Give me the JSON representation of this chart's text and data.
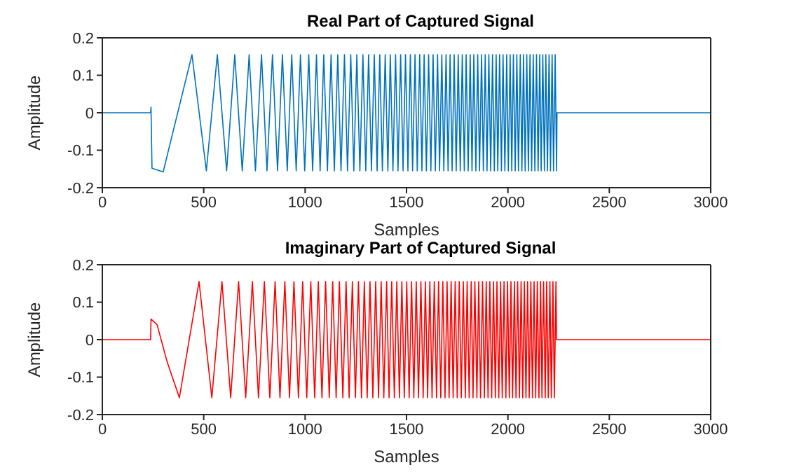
{
  "chart_data": [
    {
      "type": "line",
      "title": "Real Part of Captured Signal",
      "xlabel": "Samples",
      "ylabel": "Amplitude",
      "xlim": [
        0,
        3000
      ],
      "xticks": [
        0,
        500,
        1000,
        1500,
        2000,
        2500,
        3000
      ],
      "ylim": [
        -0.2,
        0.2
      ],
      "yticks": [
        -0.2,
        -0.1,
        0,
        0.1,
        0.2
      ],
      "grid": false,
      "x": [
        0,
        238,
        240,
        245,
        300,
        442,
        513,
        567,
        613,
        653,
        690,
        724,
        755,
        785,
        812,
        839,
        864,
        888,
        912,
        934,
        956,
        977,
        998,
        1018,
        1037,
        1056,
        1074,
        1092,
        1110,
        1128,
        1144,
        1161,
        1177,
        1194,
        1209,
        1225,
        1240,
        1255,
        1270,
        1285,
        1299,
        1313,
        1327,
        1341,
        1355,
        1368,
        1381,
        1395,
        1408,
        1420,
        1433,
        1446,
        1458,
        1471,
        1483,
        1495,
        1507,
        1519,
        1530,
        1542,
        1553,
        1565,
        1576,
        1587,
        1598,
        1609,
        1620,
        1631,
        1642,
        1653,
        1663,
        1674,
        1684,
        1695,
        1705,
        1715,
        1725,
        1735,
        1745,
        1755,
        1765,
        1775,
        1785,
        1794,
        1804,
        1814,
        1823,
        1832,
        1842,
        1851,
        1860,
        1870,
        1879,
        1888,
        1897,
        1906,
        1915,
        1924,
        1933,
        1942,
        1950,
        1959,
        1968,
        1976,
        1985,
        1994,
        2002,
        2011,
        2019,
        2027,
        2036,
        2044,
        2052,
        2061,
        2069,
        2077,
        2085,
        2093,
        2101,
        2109,
        2117,
        2125,
        2133,
        2141,
        2149,
        2157,
        2164,
        2172,
        2180,
        2187,
        2195,
        2203,
        2210,
        2218,
        2225,
        2233,
        2240,
        2242,
        3000
      ],
      "series": [
        {
          "color": "#0072bd",
          "values": [
            0,
            0,
            0.015,
            -0.148,
            -0.158,
            0.155,
            -0.155,
            0.155,
            -0.155,
            0.155,
            -0.155,
            0.155,
            -0.155,
            0.155,
            -0.155,
            0.155,
            -0.155,
            0.155,
            -0.155,
            0.155,
            -0.155,
            0.155,
            -0.155,
            0.155,
            -0.155,
            0.155,
            -0.155,
            0.155,
            -0.155,
            0.155,
            -0.155,
            0.155,
            -0.155,
            0.155,
            -0.155,
            0.155,
            -0.155,
            0.155,
            -0.155,
            0.155,
            -0.155,
            0.155,
            -0.155,
            0.155,
            -0.155,
            0.155,
            -0.155,
            0.155,
            -0.155,
            0.155,
            -0.155,
            0.155,
            -0.155,
            0.155,
            -0.155,
            0.155,
            -0.155,
            0.155,
            -0.155,
            0.155,
            -0.155,
            0.155,
            -0.155,
            0.155,
            -0.155,
            0.155,
            -0.155,
            0.155,
            -0.155,
            0.155,
            -0.155,
            0.155,
            -0.155,
            0.155,
            -0.155,
            0.155,
            -0.155,
            0.155,
            -0.155,
            0.155,
            -0.155,
            0.155,
            -0.155,
            0.155,
            -0.155,
            0.155,
            -0.155,
            0.155,
            -0.155,
            0.155,
            -0.155,
            0.155,
            -0.155,
            0.155,
            -0.155,
            0.155,
            -0.155,
            0.155,
            -0.155,
            0.155,
            -0.155,
            0.155,
            -0.155,
            0.155,
            -0.155,
            0.155,
            -0.155,
            0.155,
            -0.155,
            0.155,
            -0.155,
            0.155,
            -0.155,
            0.155,
            -0.155,
            0.155,
            -0.155,
            0.155,
            -0.155,
            0.155,
            -0.155,
            0.155,
            -0.155,
            0.155,
            -0.155,
            0.155,
            -0.155,
            0.155,
            -0.155,
            0.155,
            -0.155,
            0.155,
            -0.155,
            0.155,
            -0.155,
            0.155,
            -0.155,
            0,
            0
          ]
        }
      ]
    },
    {
      "type": "line",
      "title": "Imaginary Part of Captured Signal",
      "xlabel": "Samples",
      "ylabel": "Amplitude",
      "xlim": [
        0,
        3000
      ],
      "xticks": [
        0,
        500,
        1000,
        1500,
        2000,
        2500,
        3000
      ],
      "ylim": [
        -0.2,
        0.2
      ],
      "yticks": [
        -0.2,
        -0.1,
        0,
        0.1,
        0.2
      ],
      "grid": false,
      "x": [
        0,
        238,
        240,
        270,
        320,
        380,
        477,
        540,
        590,
        633,
        672,
        707,
        740,
        770,
        799,
        826,
        852,
        876,
        900,
        923,
        945,
        967,
        988,
        1008,
        1028,
        1047,
        1065,
        1083,
        1101,
        1119,
        1136,
        1153,
        1169,
        1186,
        1202,
        1217,
        1233,
        1248,
        1263,
        1278,
        1292,
        1306,
        1320,
        1334,
        1348,
        1362,
        1375,
        1388,
        1402,
        1414,
        1427,
        1440,
        1452,
        1465,
        1477,
        1489,
        1501,
        1513,
        1525,
        1536,
        1548,
        1559,
        1571,
        1582,
        1593,
        1604,
        1615,
        1626,
        1637,
        1648,
        1658,
        1669,
        1679,
        1690,
        1700,
        1710,
        1720,
        1730,
        1740,
        1750,
        1760,
        1770,
        1780,
        1790,
        1799,
        1809,
        1819,
        1828,
        1837,
        1847,
        1856,
        1865,
        1875,
        1884,
        1893,
        1902,
        1911,
        1920,
        1929,
        1938,
        1946,
        1955,
        1964,
        1972,
        1981,
        1990,
        1998,
        2007,
        2015,
        2023,
        2032,
        2040,
        2048,
        2057,
        2065,
        2073,
        2081,
        2089,
        2097,
        2105,
        2113,
        2121,
        2129,
        2137,
        2145,
        2153,
        2161,
        2168,
        2176,
        2184,
        2191,
        2199,
        2207,
        2214,
        2222,
        2229,
        2237,
        2240,
        3000
      ],
      "series": [
        {
          "color": "#ff0000",
          "values": [
            0,
            0,
            0.055,
            0.04,
            -0.06,
            -0.155,
            0.155,
            -0.155,
            0.155,
            -0.155,
            0.155,
            -0.155,
            0.155,
            -0.155,
            0.155,
            -0.155,
            0.155,
            -0.155,
            0.155,
            -0.155,
            0.155,
            -0.155,
            0.155,
            -0.155,
            0.155,
            -0.155,
            0.155,
            -0.155,
            0.155,
            -0.155,
            0.155,
            -0.155,
            0.155,
            -0.155,
            0.155,
            -0.155,
            0.155,
            -0.155,
            0.155,
            -0.155,
            0.155,
            -0.155,
            0.155,
            -0.155,
            0.155,
            -0.155,
            0.155,
            -0.155,
            0.155,
            -0.155,
            0.155,
            -0.155,
            0.155,
            -0.155,
            0.155,
            -0.155,
            0.155,
            -0.155,
            0.155,
            -0.155,
            0.155,
            -0.155,
            0.155,
            -0.155,
            0.155,
            -0.155,
            0.155,
            -0.155,
            0.155,
            -0.155,
            0.155,
            -0.155,
            0.155,
            -0.155,
            0.155,
            -0.155,
            0.155,
            -0.155,
            0.155,
            -0.155,
            0.155,
            -0.155,
            0.155,
            -0.155,
            0.155,
            -0.155,
            0.155,
            -0.155,
            0.155,
            -0.155,
            0.155,
            -0.155,
            0.155,
            -0.155,
            0.155,
            -0.155,
            0.155,
            -0.155,
            0.155,
            -0.155,
            0.155,
            -0.155,
            0.155,
            -0.155,
            0.155,
            -0.155,
            0.155,
            -0.155,
            0.155,
            -0.155,
            0.155,
            -0.155,
            0.155,
            -0.155,
            0.155,
            -0.155,
            0.155,
            -0.155,
            0.155,
            -0.155,
            0.155,
            -0.155,
            0.155,
            -0.155,
            0.155,
            -0.155,
            0.155,
            -0.155,
            0.155,
            -0.155,
            0.155,
            -0.155,
            0.155,
            -0.155,
            0.155,
            -0.155,
            0.155,
            0,
            0
          ]
        }
      ]
    }
  ]
}
